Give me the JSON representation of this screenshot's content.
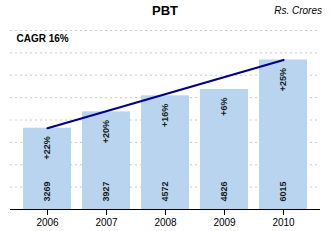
{
  "chart_data": {
    "type": "bar",
    "title": "PBT",
    "subtitle": "Rs. Crores",
    "annotations": [
      "CAGR 16%"
    ],
    "categories": [
      "2006",
      "2007",
      "2008",
      "2009",
      "2010"
    ],
    "values": [
      3269,
      3927,
      4572,
      4826,
      6015
    ],
    "pct_labels": [
      "+22%",
      "+20%",
      "+16%",
      "+6%",
      "+25%"
    ],
    "color": "#b8d4ee",
    "trend": {
      "categories": [
        "2006",
        "2010"
      ],
      "values": [
        3269,
        6015
      ],
      "color": "#000088"
    },
    "ylim": [
      0,
      7200
    ],
    "yticks": [
      0,
      900,
      1800,
      2700,
      3600,
      4500,
      5400,
      6300,
      7200
    ],
    "grid": true,
    "data_labels": true,
    "tick_labels": "x"
  }
}
